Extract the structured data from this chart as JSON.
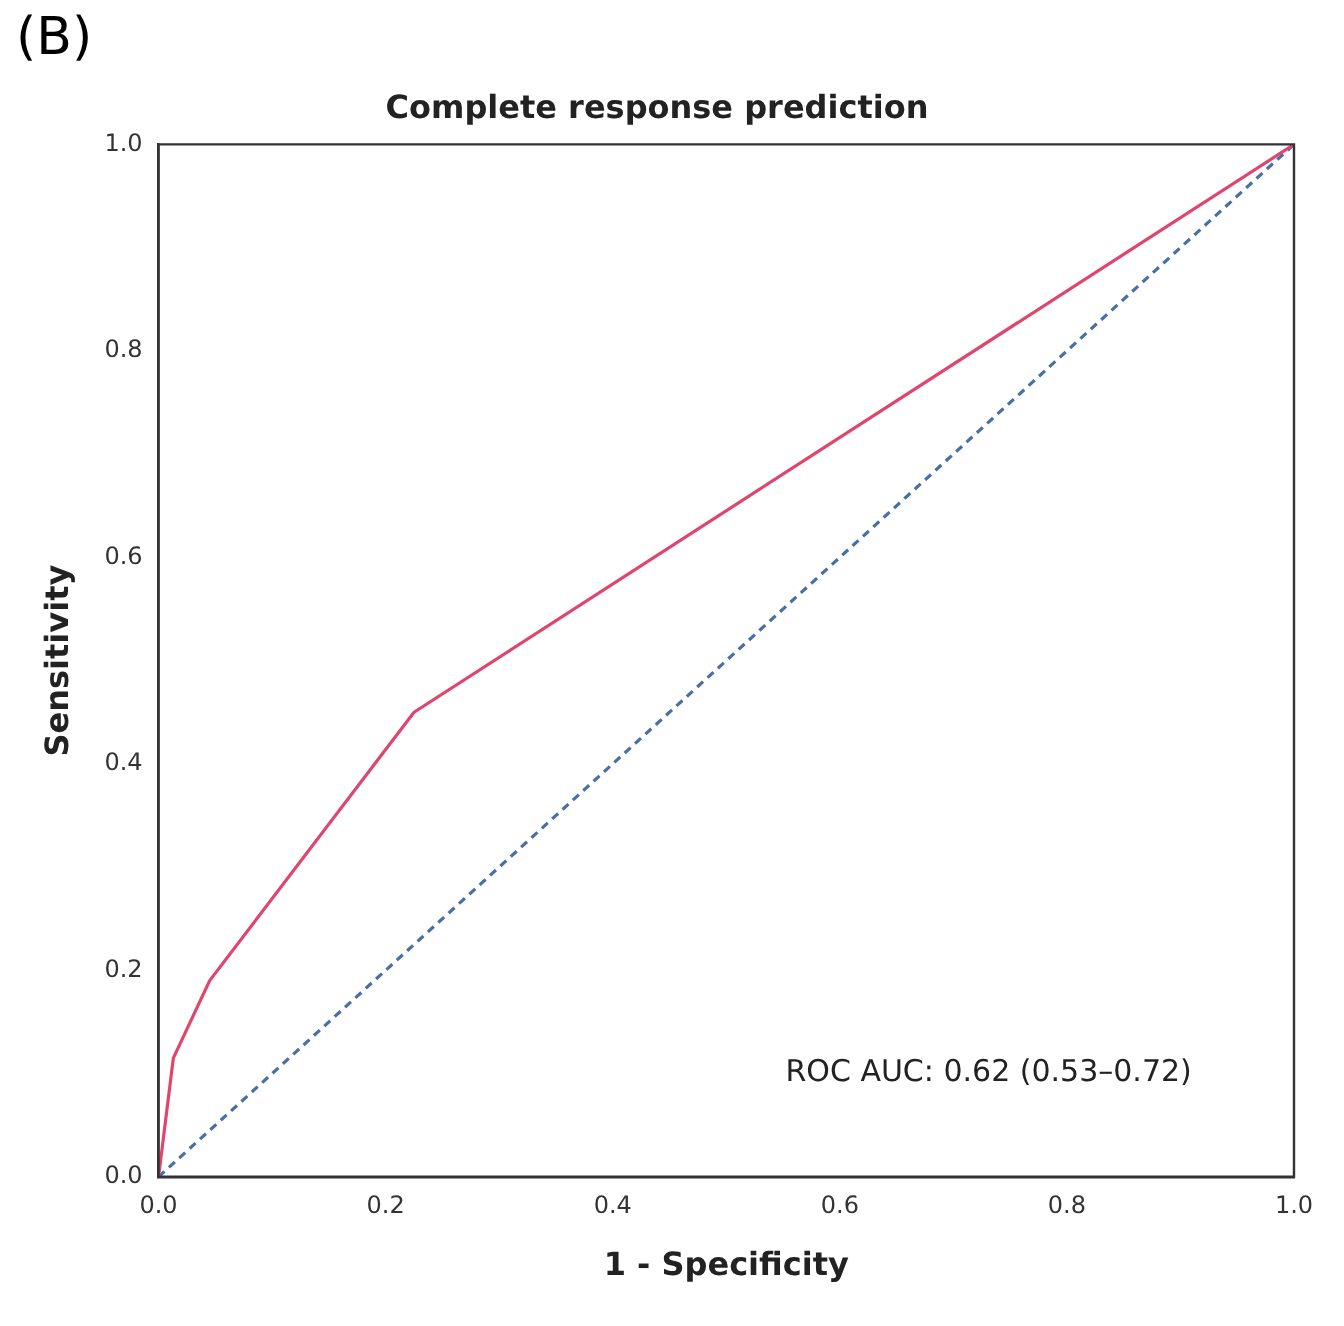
{
  "chart_data": {
    "type": "line",
    "title": "Complete response prediction",
    "xlabel": "1 - Specificity",
    "ylabel": "Sensitivity",
    "annotations": [
      "(B)",
      "ROC AUC: 0.62 (0.53–0.72)"
    ],
    "series": [
      {
        "color": "#e0456e",
        "x": [
          0,
          0.013,
          0.045,
          0.225,
          1
        ],
        "values": [
          0,
          0.115,
          0.19,
          0.45,
          1
        ],
        "line_style": "solid"
      },
      {
        "color": "#4a6fa5",
        "x": [
          0,
          1
        ],
        "values": [
          0,
          1
        ],
        "line_style": "dashed"
      }
    ],
    "xlim": [
      0,
      1
    ],
    "ylim": [
      0,
      1
    ],
    "xticks": [
      {
        "value": 0,
        "label": "0.0"
      },
      0.2,
      0.4,
      0.6,
      0.8,
      {
        "value": 1,
        "label": "1.0"
      }
    ],
    "yticks": [
      {
        "value": 0,
        "label": "0.0"
      },
      0.2,
      0.4,
      0.6,
      0.8,
      {
        "value": 1,
        "label": "1.0"
      }
    ],
    "marker": "none",
    "grid": false,
    "legend": false
  }
}
